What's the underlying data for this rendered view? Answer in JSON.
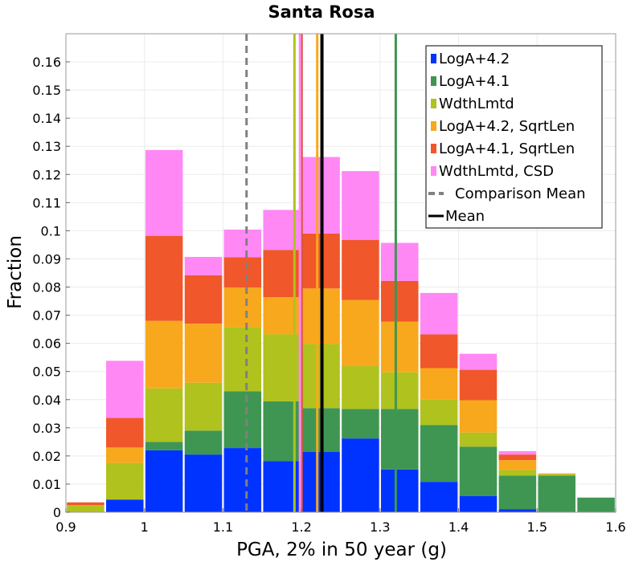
{
  "chart_data": {
    "type": "bar",
    "stacked": true,
    "title": "Santa Rosa",
    "xlabel": "PGA, 2% in 50 year (g)",
    "ylabel": "Fraction",
    "xlim": [
      0.9,
      1.6
    ],
    "ylim": [
      0,
      0.17
    ],
    "xticks": [
      0.9,
      1,
      1.1,
      1.2,
      1.3,
      1.4,
      1.5,
      1.6
    ],
    "xtick_labels": [
      "0.9",
      "1",
      "1.1",
      "1.2",
      "1.3",
      "1.4",
      "1.5",
      "1.6"
    ],
    "yticks": [
      0,
      0.01,
      0.02,
      0.03,
      0.04,
      0.05,
      0.06,
      0.07,
      0.08,
      0.09,
      0.1,
      0.11,
      0.12,
      0.13,
      0.14,
      0.15,
      0.16
    ],
    "ytick_labels": [
      "0",
      "0.01",
      "0.02",
      "0.03",
      "0.04",
      "0.05",
      "0.06",
      "0.07",
      "0.08",
      "0.09",
      "0.1",
      "0.11",
      "0.12",
      "0.13",
      "0.14",
      "0.15",
      "0.16"
    ],
    "grid": true,
    "bin_width": 0.05,
    "bin_centers": [
      0.925,
      0.975,
      1.025,
      1.075,
      1.125,
      1.175,
      1.225,
      1.275,
      1.325,
      1.375,
      1.425,
      1.475,
      1.525,
      1.575
    ],
    "series": [
      {
        "name": "LogA+4.2",
        "color": "#0033ff",
        "values": [
          0,
          0.0045,
          0.022,
          0.0205,
          0.0228,
          0.0182,
          0.0215,
          0.0262,
          0.0152,
          0.0108,
          0.0058,
          0.001,
          0,
          0
        ]
      },
      {
        "name": "LogA+4.1",
        "color": "#3f9652",
        "values": [
          0,
          0,
          0.003,
          0.0085,
          0.0202,
          0.0212,
          0.0155,
          0.0105,
          0.0215,
          0.0202,
          0.0175,
          0.012,
          0.013,
          0.0052
        ]
      },
      {
        "name": "WdthLmtd",
        "color": "#b0c21e",
        "values": [
          0.0025,
          0.013,
          0.019,
          0.017,
          0.0228,
          0.0238,
          0.0228,
          0.0152,
          0.013,
          0.009,
          0.005,
          0.002,
          0.0005,
          0
        ]
      },
      {
        "name": "LogA+4.2, SqrtLen",
        "color": "#f8a81c",
        "values": [
          0,
          0.0055,
          0.024,
          0.021,
          0.014,
          0.0132,
          0.0197,
          0.0235,
          0.018,
          0.0112,
          0.0115,
          0.0035,
          0.0003,
          0
        ]
      },
      {
        "name": "LogA+4.1, SqrtLen",
        "color": "#f0572a",
        "values": [
          0.001,
          0.0105,
          0.0302,
          0.0172,
          0.0108,
          0.0168,
          0.0195,
          0.0213,
          0.0145,
          0.012,
          0.0108,
          0.002,
          0,
          0
        ]
      },
      {
        "name": "WdthLmtd, CSD",
        "color": "#ff88f5",
        "values": [
          0,
          0.0203,
          0.0305,
          0.0065,
          0.0098,
          0.0142,
          0.0272,
          0.0245,
          0.0135,
          0.0147,
          0.0057,
          0.0012,
          0,
          0
        ]
      }
    ],
    "vlines": [
      {
        "label": "LogA+4.2",
        "x": 1.2,
        "color": "#0033ff",
        "style": "solid",
        "in_legend": false
      },
      {
        "label": "LogA+4.1",
        "x": 1.32,
        "color": "#3f9652",
        "style": "solid",
        "in_legend": false
      },
      {
        "label": "WdthLmtd",
        "x": 1.191,
        "color": "#b0c21e",
        "style": "solid",
        "in_legend": false
      },
      {
        "label": "LogA+4.2, SqrtLen",
        "x": 1.22,
        "color": "#f8a81c",
        "style": "solid",
        "in_legend": false
      },
      {
        "label": "LogA+4.1, SqrtLen",
        "x": 1.2,
        "color": "#f0572a",
        "style": "solid",
        "in_legend": false
      },
      {
        "label": "WdthLmtd, CSD",
        "x": 1.198,
        "color": "#ff88f5",
        "style": "solid",
        "in_legend": false
      },
      {
        "label": "Comparison Mean",
        "x": 1.13,
        "color": "#808080",
        "style": "dashed",
        "in_legend": true
      },
      {
        "label": "Mean",
        "x": 1.226,
        "color": "#000000",
        "style": "solid",
        "in_legend": true
      }
    ],
    "legend_position": "top-right"
  }
}
